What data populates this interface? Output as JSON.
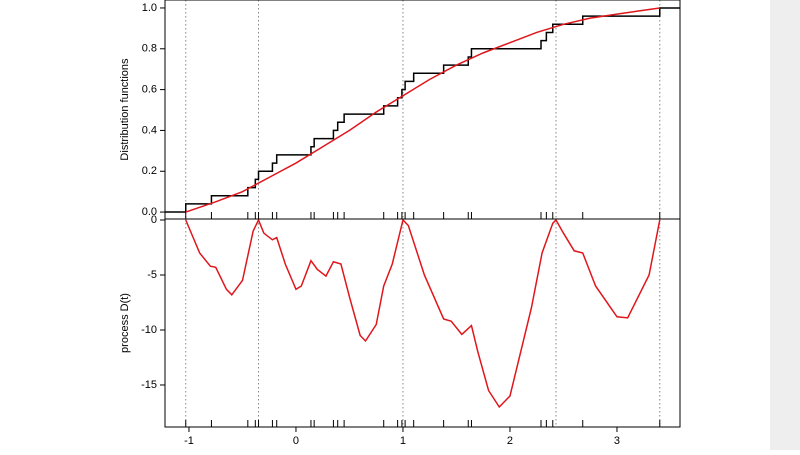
{
  "chart_data": [
    {
      "type": "line",
      "ylabel": "Distribution functions",
      "xlim": [
        -1.224,
        3.589
      ],
      "ylim": [
        -0.034,
        1.039
      ],
      "yticks": [
        {
          "value": 0,
          "label": "0.0"
        },
        0.2,
        0.4,
        0.6,
        0.8,
        {
          "value": 1,
          "label": "1.0"
        }
      ],
      "vlines": [
        -1.03,
        -0.35,
        1.0,
        2.43,
        3.4
      ],
      "rug": [
        -1.03,
        -0.79,
        -0.45,
        -0.38,
        -0.35,
        -0.22,
        -0.18,
        0.14,
        0.17,
        0.35,
        0.39,
        0.45,
        0.82,
        0.95,
        0.99,
        1.02,
        1.1,
        1.38,
        1.61,
        1.64,
        2.29,
        2.34,
        2.4,
        2.68,
        3.4
      ],
      "series": [
        {
          "color": "#000000",
          "step": true,
          "x": [
            -1.224,
            -1.03,
            -0.79,
            -0.45,
            -0.38,
            -0.35,
            -0.22,
            -0.18,
            0.14,
            0.17,
            0.35,
            0.39,
            0.45,
            0.82,
            0.95,
            0.99,
            1.02,
            1.1,
            1.38,
            1.61,
            1.64,
            2.29,
            2.34,
            2.4,
            2.68,
            3.4
          ],
          "values": [
            0,
            0.04,
            0.08,
            0.12,
            0.16,
            0.2,
            0.24,
            0.28,
            0.32,
            0.36,
            0.4,
            0.44,
            0.48,
            0.52,
            0.56,
            0.6,
            0.64,
            0.68,
            0.72,
            0.76,
            0.8,
            0.84,
            0.88,
            0.92,
            0.96,
            1.0
          ]
        },
        {
          "color": "#e0161b",
          "x": [
            -1.03,
            -0.75,
            -0.5,
            -0.25,
            0,
            0.25,
            0.5,
            0.75,
            1,
            1.25,
            1.5,
            1.75,
            2,
            2.25,
            2.5,
            2.75,
            3,
            3.2,
            3.4
          ],
          "values": [
            0.0,
            0.05,
            0.1,
            0.17,
            0.24,
            0.32,
            0.4,
            0.49,
            0.57,
            0.65,
            0.72,
            0.78,
            0.83,
            0.88,
            0.92,
            0.95,
            0.97,
            0.985,
            1.0
          ]
        }
      ]
    },
    {
      "type": "line",
      "ylabel": "process D(t)",
      "xlim": [
        -1.224,
        3.589
      ],
      "ylim": [
        -18.82,
        0.09
      ],
      "yticks": [
        0,
        -5,
        -10,
        -15
      ],
      "xticks": [
        -1,
        0,
        1,
        2,
        3
      ],
      "vlines": [
        -1.03,
        -0.35,
        1.0,
        2.43,
        3.4
      ],
      "rug": [
        -1.03,
        -0.79,
        -0.45,
        -0.38,
        -0.35,
        -0.22,
        -0.18,
        0.14,
        0.17,
        0.35,
        0.39,
        0.45,
        0.82,
        0.95,
        0.99,
        1.02,
        1.1,
        1.38,
        1.61,
        1.64,
        2.29,
        2.34,
        2.4,
        2.68,
        3.4
      ],
      "series": [
        {
          "color": "#e0161b",
          "x": [
            -1.03,
            -0.9,
            -0.8,
            -0.75,
            -0.65,
            -0.6,
            -0.5,
            -0.4,
            -0.35,
            -0.3,
            -0.22,
            -0.18,
            -0.1,
            0,
            0.05,
            0.14,
            0.2,
            0.28,
            0.35,
            0.42,
            0.5,
            0.6,
            0.65,
            0.75,
            0.82,
            0.9,
            1.0,
            1.05,
            1.2,
            1.38,
            1.45,
            1.55,
            1.64,
            1.7,
            1.8,
            1.9,
            2.0,
            2.2,
            2.3,
            2.4,
            2.43,
            2.5,
            2.6,
            2.68,
            2.8,
            3.0,
            3.1,
            3.3,
            3.4
          ],
          "values": [
            0,
            -3,
            -4.2,
            -4.3,
            -6.3,
            -6.8,
            -5.5,
            -1,
            0,
            -1.2,
            -1.8,
            -1.6,
            -4,
            -6.3,
            -6,
            -3.7,
            -4.5,
            -5.1,
            -3.8,
            -4,
            -7,
            -10.5,
            -11,
            -9.5,
            -6,
            -4,
            0,
            -0.5,
            -5,
            -9,
            -9.2,
            -10.4,
            -9.6,
            -12,
            -15.5,
            -17,
            -16,
            -8,
            -3,
            -0.3,
            0,
            -1.2,
            -2.8,
            -3,
            -6,
            -8.8,
            -8.9,
            -5,
            0
          ]
        }
      ]
    }
  ]
}
